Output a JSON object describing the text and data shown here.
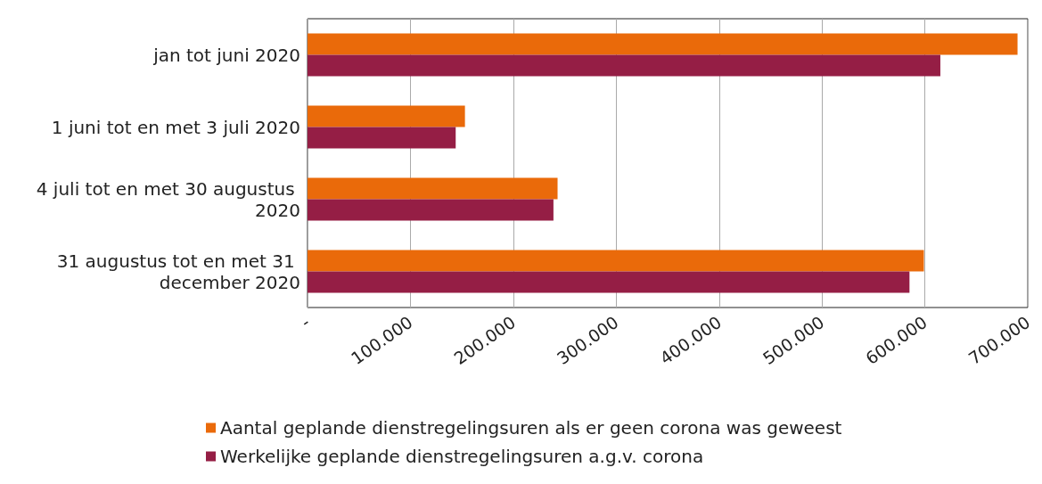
{
  "chart_data": {
    "type": "bar",
    "orientation": "horizontal",
    "categories": [
      "jan tot juni 2020",
      "1 juni tot en met 3 juli 2020",
      "4 juli tot en met 30 augustus 2020",
      "31 augustus tot en met 31 december 2020"
    ],
    "series": [
      {
        "name": "Aantal geplande dienstregelingsuren als er geen corona was geweest",
        "color": "#ea6a0a",
        "values": [
          690000,
          153000,
          243000,
          599000
        ]
      },
      {
        "name": "Werkelijke geplande dienstregelingsuren a.g.v. corona",
        "color": "#951e45",
        "values": [
          615000,
          144000,
          239000,
          585000
        ]
      }
    ],
    "xlim": [
      0,
      700000
    ],
    "xticks": [
      {
        "value": 0,
        "label": "-"
      },
      {
        "value": 100000,
        "label": "100.000"
      },
      {
        "value": 200000,
        "label": "200.000"
      },
      {
        "value": 300000,
        "label": "300.000"
      },
      {
        "value": 400000,
        "label": "400.000"
      },
      {
        "value": 500000,
        "label": "500.000"
      },
      {
        "value": 600000,
        "label": "600.000"
      },
      {
        "value": 700000,
        "label": "700.000"
      }
    ],
    "grid": "x",
    "legend": "bottom"
  }
}
